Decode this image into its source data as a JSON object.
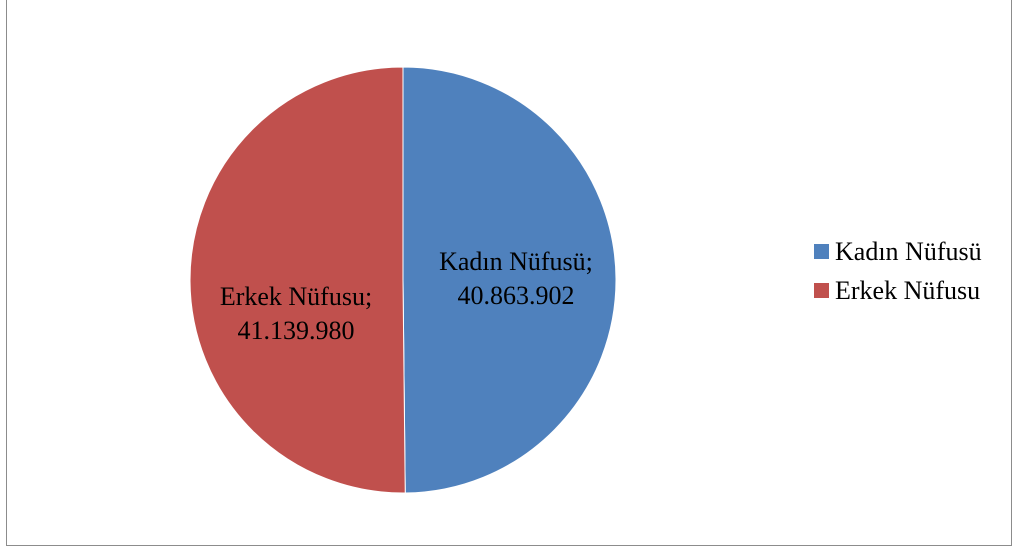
{
  "chart_data": {
    "type": "pie",
    "categories": [
      "Kadın Nüfusü",
      "Erkek Nüfusu"
    ],
    "values": [
      40863902,
      41139980
    ],
    "data_labels": [
      {
        "name": "Kadın Nüfusü;",
        "value": "40.863.902"
      },
      {
        "name": "Erkek Nüfusu;",
        "value": "41.139.980"
      }
    ],
    "colors": [
      "#4f81bd",
      "#c0504d"
    ],
    "legend": {
      "position": "right",
      "items": [
        {
          "label": "Kadın Nüfusü",
          "color": "#4f81bd"
        },
        {
          "label": "Erkek Nüfusu",
          "color": "#c0504d"
        }
      ]
    }
  }
}
